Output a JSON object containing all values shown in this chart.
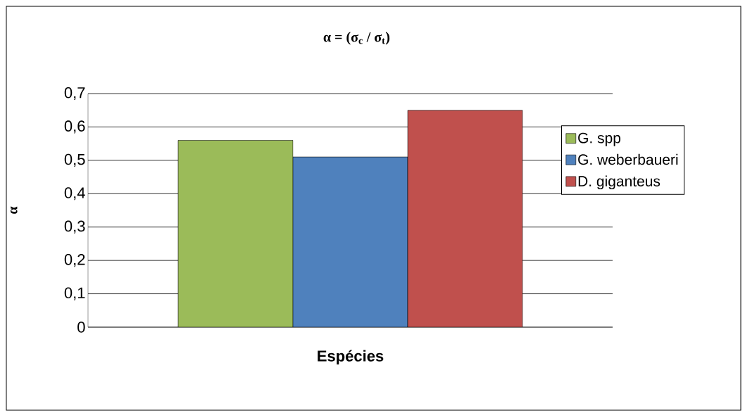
{
  "chart_data": {
    "type": "bar",
    "title": "α = (σ$_{c}$ / σ$_{t}$)",
    "xlabel": "Espécies",
    "ylabel": "α",
    "categories": [
      null
    ],
    "series": [
      {
        "name": "G. spp",
        "color": "#9bbb59",
        "values": [
          0.56
        ]
      },
      {
        "name": "G. weberbaueri",
        "color": "#4f81bd",
        "values": [
          0.51
        ]
      },
      {
        "name": "D. giganteus",
        "color": "#c0504d",
        "values": [
          0.65
        ]
      }
    ],
    "ylim": [
      0,
      0.7
    ],
    "yticks": [
      0,
      {
        "value": 0.1,
        "label": "0,1"
      },
      {
        "value": 0.2,
        "label": "0,2"
      },
      {
        "value": 0.3,
        "label": "0,3"
      },
      {
        "value": 0.4,
        "label": "0,4"
      },
      {
        "value": 0.5,
        "label": "0,5"
      },
      {
        "value": 0.6,
        "label": "0,6"
      },
      {
        "value": 0.7,
        "label": "0,7"
      }
    ],
    "grid": "y",
    "legend": "right"
  }
}
